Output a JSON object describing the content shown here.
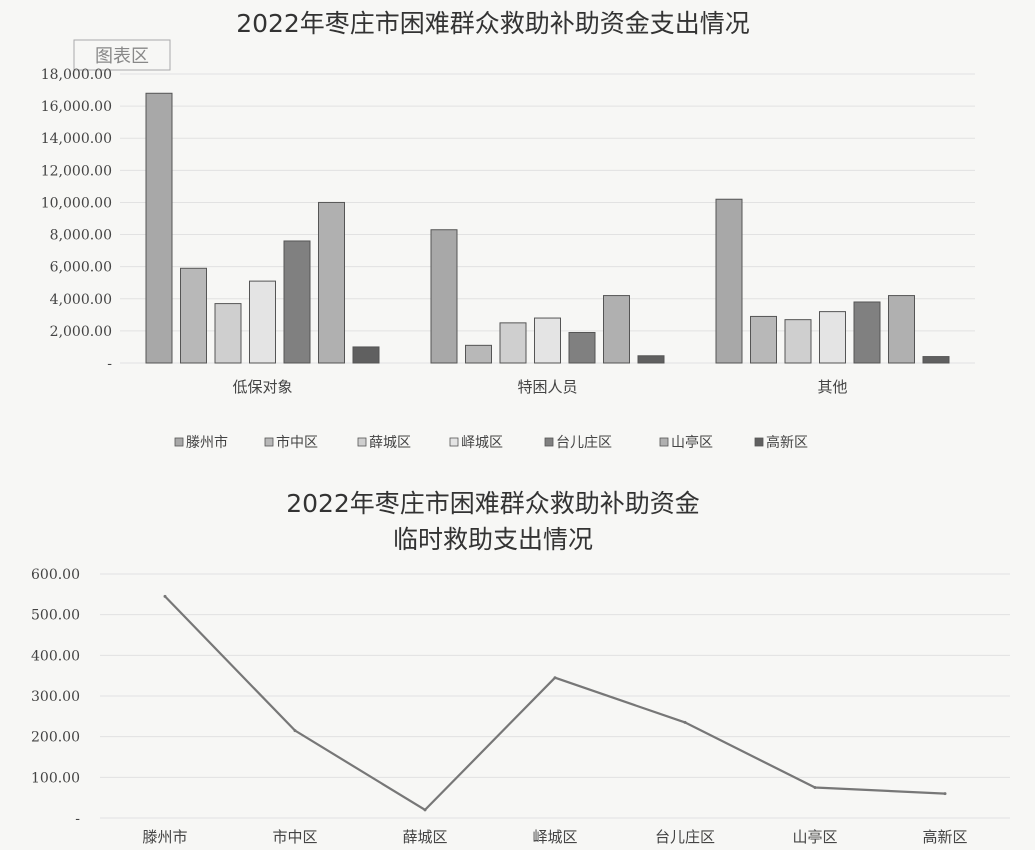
{
  "frame_tag": "图表区",
  "chart_data": [
    {
      "type": "bar",
      "title": "2022年枣庄市困难群众救助补助资金支出情况",
      "categories": [
        "低保对象",
        "特困人员",
        "其他"
      ],
      "ylim": [
        0,
        18000
      ],
      "y_ticks": [
        "-",
        "2,000.00",
        "4,000.00",
        "6,000.00",
        "8,000.00",
        "10,000.00",
        "12,000.00",
        "14,000.00",
        "16,000.00",
        "18,000.00"
      ],
      "grid": true,
      "legend_position": "bottom",
      "series": [
        {
          "name": "滕州市",
          "color": "#a8a8a8",
          "values": [
            16800,
            8300,
            10200
          ]
        },
        {
          "name": "市中区",
          "color": "#b8b8b8",
          "values": [
            5900,
            1100,
            2900
          ]
        },
        {
          "name": "薛城区",
          "color": "#cfcfcf",
          "values": [
            3700,
            2500,
            2700
          ]
        },
        {
          "name": "峄城区",
          "color": "#e4e4e4",
          "values": [
            5100,
            2800,
            3200
          ]
        },
        {
          "name": "台儿庄区",
          "color": "#808080",
          "values": [
            7600,
            1900,
            3800
          ]
        },
        {
          "name": "山亭区",
          "color": "#b0b0b0",
          "values": [
            10000,
            4200,
            4200
          ]
        },
        {
          "name": "高新区",
          "color": "#606060",
          "values": [
            1000,
            450,
            400
          ]
        }
      ]
    },
    {
      "type": "line",
      "title_lines": [
        "2022年枣庄市困难群众救助补助资金",
        "临时救助支出情况"
      ],
      "categories": [
        "滕州市",
        "市中区",
        "薛城区",
        "峄城区",
        "台儿庄区",
        "山亭区",
        "高新区"
      ],
      "values": [
        545,
        215,
        20,
        345,
        235,
        75,
        60
      ],
      "ylim": [
        0,
        600
      ],
      "y_ticks": [
        "-",
        "100.00",
        "200.00",
        "300.00",
        "400.00",
        "500.00",
        "600.00"
      ],
      "grid": true,
      "line_color": "#777777"
    }
  ]
}
